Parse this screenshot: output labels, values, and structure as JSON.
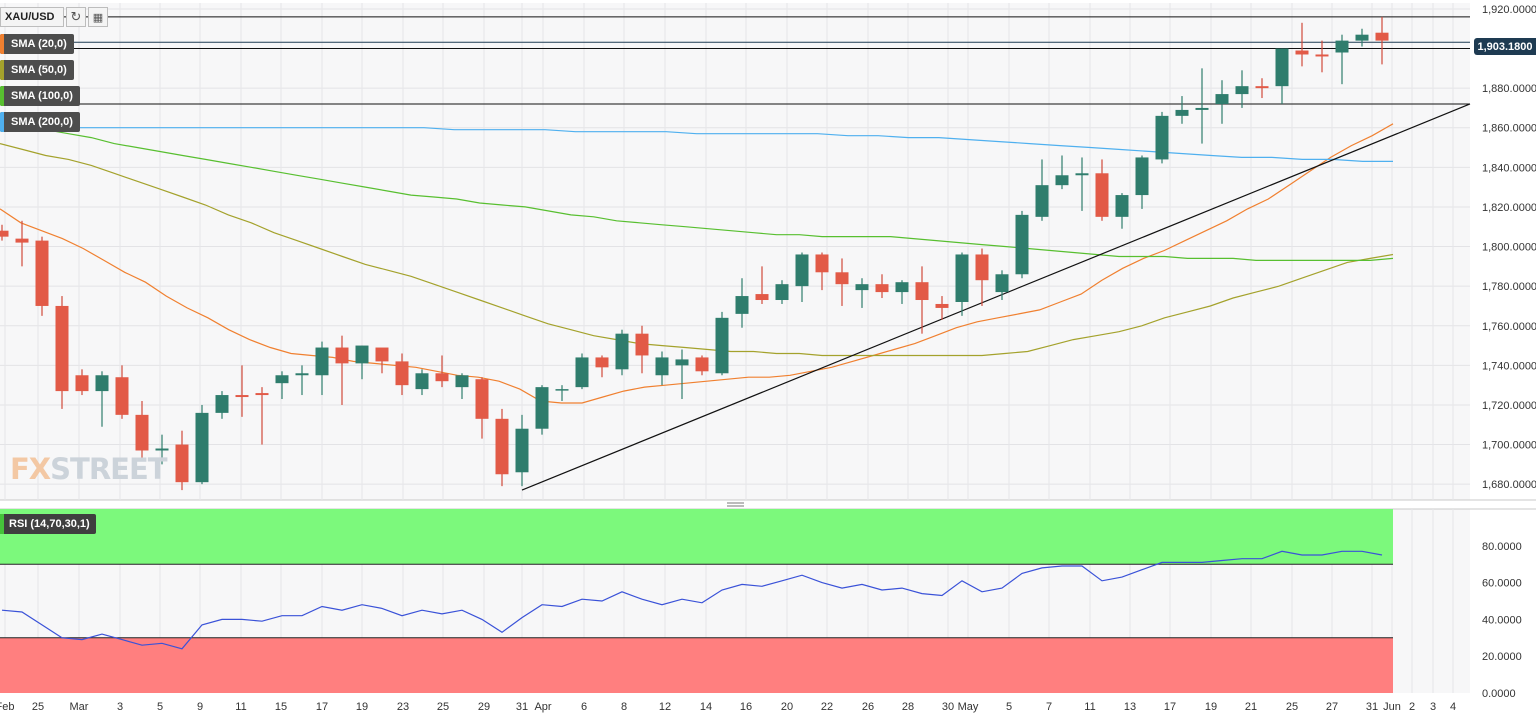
{
  "header": {
    "symbol": "XAU/USD",
    "refresh_icon": "refresh-icon",
    "calendar_icon": "calendar-icon"
  },
  "legend": [
    {
      "label": "SMA (20,0)",
      "color": "#f08030"
    },
    {
      "label": "SMA (50,0)",
      "color": "#a4a22c"
    },
    {
      "label": "SMA (100,0)",
      "color": "#58bf30"
    },
    {
      "label": "SMA (200,0)",
      "color": "#4fb0ef"
    }
  ],
  "watermark": {
    "left": "FX",
    "right": "STREET"
  },
  "current_price": "1,903.1800",
  "colors": {
    "up": "#2f7d6d",
    "down": "#e25a47",
    "up_wick": "#2f7d6d",
    "down_wick": "#d04a3a"
  },
  "chart_data": [
    {
      "type": "candlestick",
      "title": "XAU/USD",
      "x_tick_labels": [
        "Feb",
        "25",
        "Mar",
        "3",
        "5",
        "9",
        "11",
        "15",
        "17",
        "19",
        "23",
        "25",
        "29",
        "31",
        "Apr",
        "6",
        "8",
        "12",
        "14",
        "16",
        "20",
        "22",
        "26",
        "28",
        "30",
        "May",
        "5",
        "7",
        "11",
        "13",
        "17",
        "19",
        "21",
        "25",
        "27",
        "31",
        "Jun",
        "2",
        "3",
        "4"
      ],
      "y_tick_labels": [
        "1,920.0000",
        "1,900.0000",
        "1,880.0000",
        "1,860.0000",
        "1,840.0000",
        "1,820.0000",
        "1,800.0000",
        "1,780.0000",
        "1,760.0000",
        "1,740.0000",
        "1,720.0000",
        "1,700.0000",
        "1,680.0000"
      ],
      "ylim": [
        1672,
        1923
      ],
      "grid": true,
      "candles": [
        {
          "o": 1808,
          "h": 1811,
          "l": 1803,
          "c": 1805
        },
        {
          "o": 1804,
          "h": 1813,
          "l": 1790,
          "c": 1802
        },
        {
          "o": 1803,
          "h": 1805,
          "l": 1765,
          "c": 1770
        },
        {
          "o": 1770,
          "h": 1775,
          "l": 1718,
          "c": 1727
        },
        {
          "o": 1735,
          "h": 1738,
          "l": 1725,
          "c": 1727
        },
        {
          "o": 1727,
          "h": 1737,
          "l": 1709,
          "c": 1735
        },
        {
          "o": 1734,
          "h": 1740,
          "l": 1713,
          "c": 1715
        },
        {
          "o": 1715,
          "h": 1722,
          "l": 1692,
          "c": 1697
        },
        {
          "o": 1697,
          "h": 1705,
          "l": 1690,
          "c": 1698
        },
        {
          "o": 1700,
          "h": 1707,
          "l": 1677,
          "c": 1681
        },
        {
          "o": 1681,
          "h": 1720,
          "l": 1680,
          "c": 1716
        },
        {
          "o": 1716,
          "h": 1727,
          "l": 1713,
          "c": 1725
        },
        {
          "o": 1725,
          "h": 1740,
          "l": 1714,
          "c": 1724
        },
        {
          "o": 1726,
          "h": 1729,
          "l": 1700,
          "c": 1725
        },
        {
          "o": 1731,
          "h": 1737,
          "l": 1723,
          "c": 1735
        },
        {
          "o": 1735,
          "h": 1740,
          "l": 1725,
          "c": 1736
        },
        {
          "o": 1735,
          "h": 1752,
          "l": 1725,
          "c": 1749
        },
        {
          "o": 1749,
          "h": 1755,
          "l": 1720,
          "c": 1741
        },
        {
          "o": 1741,
          "h": 1750,
          "l": 1733,
          "c": 1750
        },
        {
          "o": 1749,
          "h": 1748,
          "l": 1736,
          "c": 1742
        },
        {
          "o": 1742,
          "h": 1746,
          "l": 1725,
          "c": 1730
        },
        {
          "o": 1728,
          "h": 1738,
          "l": 1725,
          "c": 1736
        },
        {
          "o": 1736,
          "h": 1745,
          "l": 1729,
          "c": 1732
        },
        {
          "o": 1729,
          "h": 1736,
          "l": 1723,
          "c": 1735
        },
        {
          "o": 1733,
          "h": 1734,
          "l": 1703,
          "c": 1713
        },
        {
          "o": 1713,
          "h": 1718,
          "l": 1679,
          "c": 1685
        },
        {
          "o": 1686,
          "h": 1715,
          "l": 1679,
          "c": 1708
        },
        {
          "o": 1708,
          "h": 1730,
          "l": 1705,
          "c": 1729
        },
        {
          "o": 1728,
          "h": 1730,
          "l": 1722,
          "c": 1728
        },
        {
          "o": 1729,
          "h": 1746,
          "l": 1728,
          "c": 1744
        },
        {
          "o": 1744,
          "h": 1745,
          "l": 1734,
          "c": 1739
        },
        {
          "o": 1738,
          "h": 1758,
          "l": 1735,
          "c": 1756
        },
        {
          "o": 1756,
          "h": 1760,
          "l": 1736,
          "c": 1745
        },
        {
          "o": 1735,
          "h": 1747,
          "l": 1730,
          "c": 1744
        },
        {
          "o": 1740,
          "h": 1748,
          "l": 1723,
          "c": 1743
        },
        {
          "o": 1744,
          "h": 1745,
          "l": 1735,
          "c": 1737
        },
        {
          "o": 1736,
          "h": 1767,
          "l": 1735,
          "c": 1764
        },
        {
          "o": 1766,
          "h": 1784,
          "l": 1759,
          "c": 1775
        },
        {
          "o": 1776,
          "h": 1790,
          "l": 1771,
          "c": 1773
        },
        {
          "o": 1773,
          "h": 1783,
          "l": 1771,
          "c": 1781
        },
        {
          "o": 1780,
          "h": 1797,
          "l": 1772,
          "c": 1796
        },
        {
          "o": 1796,
          "h": 1797,
          "l": 1778,
          "c": 1787
        },
        {
          "o": 1787,
          "h": 1794,
          "l": 1770,
          "c": 1781
        },
        {
          "o": 1778,
          "h": 1784,
          "l": 1769,
          "c": 1781
        },
        {
          "o": 1781,
          "h": 1786,
          "l": 1774,
          "c": 1777
        },
        {
          "o": 1777,
          "h": 1783,
          "l": 1771,
          "c": 1782
        },
        {
          "o": 1782,
          "h": 1790,
          "l": 1756,
          "c": 1773
        },
        {
          "o": 1771,
          "h": 1775,
          "l": 1763,
          "c": 1769
        },
        {
          "o": 1772,
          "h": 1797,
          "l": 1765,
          "c": 1796
        },
        {
          "o": 1796,
          "h": 1799,
          "l": 1770,
          "c": 1783
        },
        {
          "o": 1777,
          "h": 1788,
          "l": 1773,
          "c": 1786
        },
        {
          "o": 1786,
          "h": 1818,
          "l": 1784,
          "c": 1816
        },
        {
          "o": 1815,
          "h": 1844,
          "l": 1813,
          "c": 1831
        },
        {
          "o": 1831,
          "h": 1846,
          "l": 1829,
          "c": 1836
        },
        {
          "o": 1836,
          "h": 1845,
          "l": 1818,
          "c": 1837
        },
        {
          "o": 1837,
          "h": 1844,
          "l": 1813,
          "c": 1815
        },
        {
          "o": 1815,
          "h": 1827,
          "l": 1809,
          "c": 1826
        },
        {
          "o": 1826,
          "h": 1846,
          "l": 1819,
          "c": 1845
        },
        {
          "o": 1844,
          "h": 1868,
          "l": 1842,
          "c": 1866
        },
        {
          "o": 1866,
          "h": 1876,
          "l": 1862,
          "c": 1869
        },
        {
          "o": 1869,
          "h": 1890,
          "l": 1852,
          "c": 1870
        },
        {
          "o": 1872,
          "h": 1884,
          "l": 1862,
          "c": 1877
        },
        {
          "o": 1877,
          "h": 1889,
          "l": 1870,
          "c": 1881
        },
        {
          "o": 1881,
          "h": 1885,
          "l": 1875,
          "c": 1880
        },
        {
          "o": 1881,
          "h": 1900,
          "l": 1872,
          "c": 1900
        },
        {
          "o": 1899,
          "h": 1913,
          "l": 1891,
          "c": 1897
        },
        {
          "o": 1897,
          "h": 1904,
          "l": 1888,
          "c": 1896
        },
        {
          "o": 1898,
          "h": 1907,
          "l": 1882,
          "c": 1904
        },
        {
          "o": 1904,
          "h": 1910,
          "l": 1901,
          "c": 1907
        },
        {
          "o": 1908,
          "h": 1916,
          "l": 1892,
          "c": 1904
        }
      ],
      "sma": {
        "SMA (20,0)": [
          1819,
          1812,
          1808,
          1804,
          1799,
          1793,
          1787,
          1782,
          1775,
          1769,
          1764,
          1758,
          1753,
          1749,
          1746,
          1745,
          1744,
          1742,
          1741,
          1740,
          1739,
          1737,
          1735,
          1734,
          1732,
          1728,
          1722,
          1721,
          1721,
          1724,
          1727,
          1729,
          1730,
          1731,
          1732,
          1733,
          1734,
          1734,
          1735,
          1737,
          1739,
          1742,
          1745,
          1748,
          1751,
          1755,
          1759,
          1762,
          1764,
          1766,
          1768,
          1772,
          1776,
          1783,
          1789,
          1794,
          1798,
          1803,
          1808,
          1813,
          1819,
          1824,
          1831,
          1838,
          1845,
          1851,
          1856,
          1862
        ],
        "SMA (50,0)": [
          1852,
          1849,
          1846,
          1844,
          1841,
          1837,
          1833,
          1829,
          1825,
          1821,
          1816,
          1812,
          1807,
          1803,
          1799,
          1795,
          1791,
          1788,
          1785,
          1781,
          1777,
          1773,
          1769,
          1765,
          1761,
          1758,
          1755,
          1753,
          1751,
          1750,
          1749,
          1748,
          1747,
          1747,
          1746,
          1746,
          1745,
          1745,
          1745,
          1745,
          1745,
          1745,
          1745,
          1745,
          1746,
          1747,
          1750,
          1753,
          1755,
          1757,
          1760,
          1764,
          1767,
          1770,
          1774,
          1777,
          1780,
          1784,
          1788,
          1792,
          1794,
          1796
        ],
        "SMA (100,0)": [
          1863,
          1861,
          1859,
          1857,
          1855,
          1852,
          1850,
          1848,
          1846,
          1844,
          1842,
          1840,
          1838,
          1836,
          1834,
          1832,
          1830,
          1828,
          1826,
          1825,
          1824,
          1822,
          1821,
          1820,
          1818,
          1816,
          1815,
          1813,
          1812,
          1811,
          1810,
          1809,
          1808,
          1807,
          1806,
          1806,
          1805,
          1805,
          1805,
          1805,
          1804,
          1803,
          1802,
          1801,
          1800,
          1799,
          1798,
          1797,
          1796,
          1795,
          1795,
          1795,
          1794,
          1794,
          1794,
          1793,
          1793,
          1793,
          1793,
          1793,
          1793,
          1794
        ],
        "SMA (200,0)": [
          1861,
          1861,
          1860,
          1860,
          1860,
          1860,
          1860,
          1860,
          1860,
          1860,
          1860,
          1860,
          1860,
          1860,
          1860,
          1859,
          1859,
          1859,
          1859,
          1858,
          1858,
          1858,
          1858,
          1857,
          1857,
          1857,
          1857,
          1857,
          1856,
          1856,
          1855,
          1855,
          1854,
          1853,
          1852,
          1851,
          1850,
          1849,
          1848,
          1847,
          1846,
          1845,
          1845,
          1844,
          1844,
          1843,
          1843
        ]
      },
      "horizontal_levels": [
        1916,
        1900,
        1872
      ],
      "trendline": {
        "from": {
          "date": "31",
          "price": 1677
        },
        "to": {
          "date": "Jun 4",
          "price": 1872
        }
      }
    },
    {
      "type": "line",
      "title": "RSI (14,70,30,1)",
      "y_tick_labels": [
        "80.0000",
        "60.0000",
        "40.0000",
        "20.0000",
        "0.0000"
      ],
      "ylim": [
        0,
        100
      ],
      "overbought": 70,
      "oversold": 30,
      "colors": {
        "line": "#3a52d8",
        "overbought_fill": "#7cf97c",
        "oversold_fill": "#ff7f7f"
      },
      "values": [
        45,
        44,
        37,
        30,
        29,
        32,
        29,
        26,
        27,
        24,
        37,
        40,
        40,
        39,
        42,
        42,
        47,
        45,
        48,
        46,
        42,
        45,
        43,
        45,
        40,
        33,
        41,
        48,
        47,
        51,
        50,
        55,
        51,
        48,
        51,
        49,
        56,
        59,
        58,
        61,
        64,
        60,
        57,
        59,
        56,
        57,
        54,
        53,
        61,
        55,
        57,
        65,
        68,
        69,
        69,
        61,
        63,
        67,
        71,
        71,
        71,
        72,
        73,
        73,
        77,
        75,
        75,
        77,
        77,
        75
      ]
    }
  ]
}
